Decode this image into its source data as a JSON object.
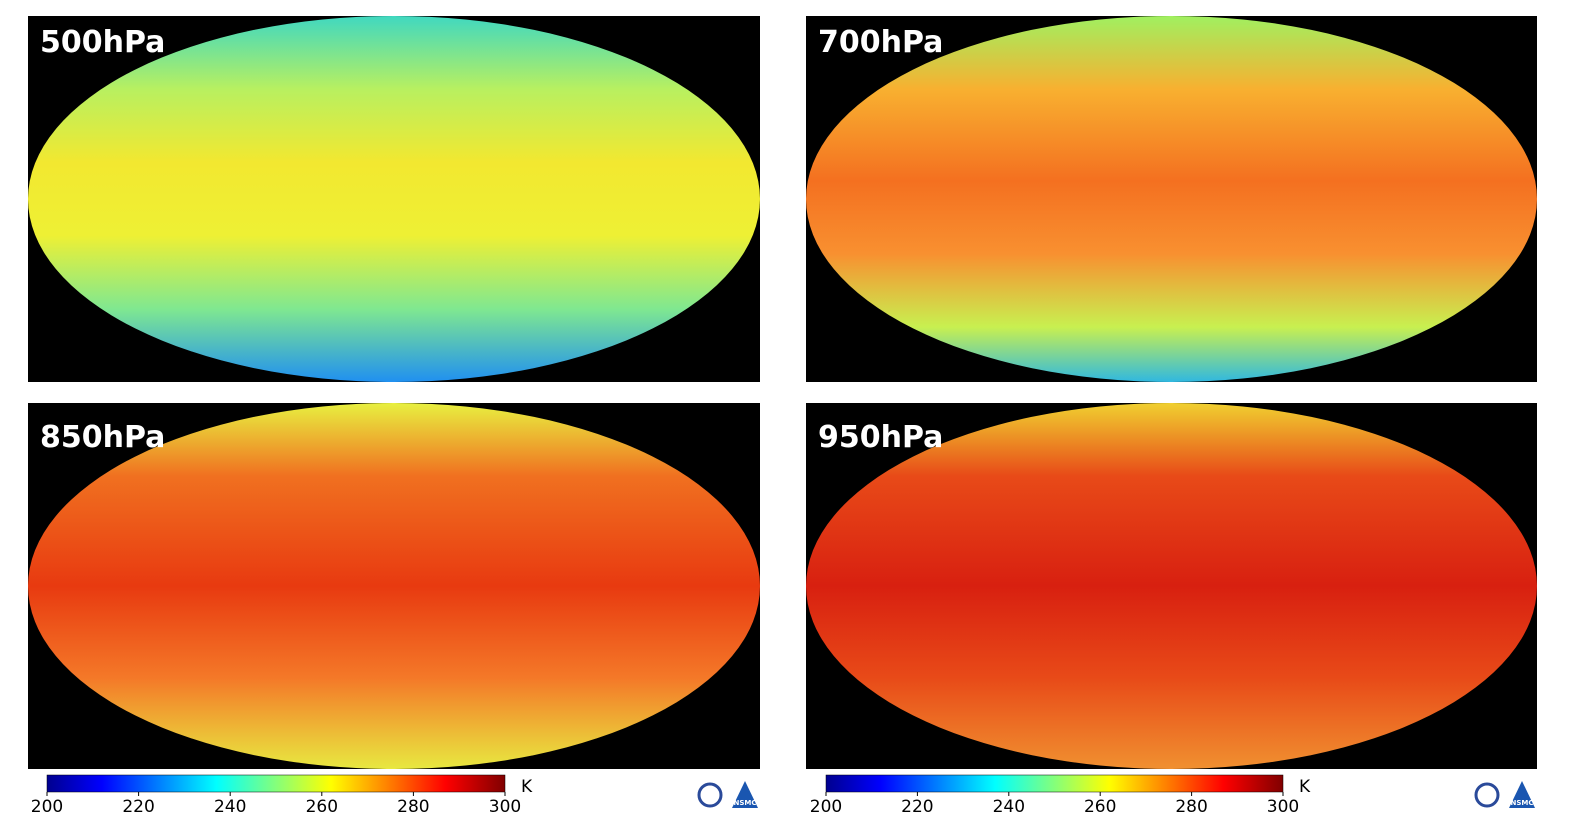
{
  "panels": [
    {
      "label": "500hPa"
    },
    {
      "label": "700hPa"
    },
    {
      "label": "850hPa"
    },
    {
      "label": "950hPa"
    }
  ],
  "colorbars": [
    {
      "range": [
        200,
        300
      ],
      "ticks": [
        200,
        220,
        240,
        260,
        280,
        300
      ],
      "unit": "K"
    },
    {
      "range": [
        200,
        300
      ],
      "ticks": [
        200,
        220,
        240,
        260,
        280,
        300
      ],
      "unit": "K"
    }
  ],
  "logos": [
    {
      "text": "NSMC"
    },
    {
      "text": "NSMC"
    }
  ]
}
